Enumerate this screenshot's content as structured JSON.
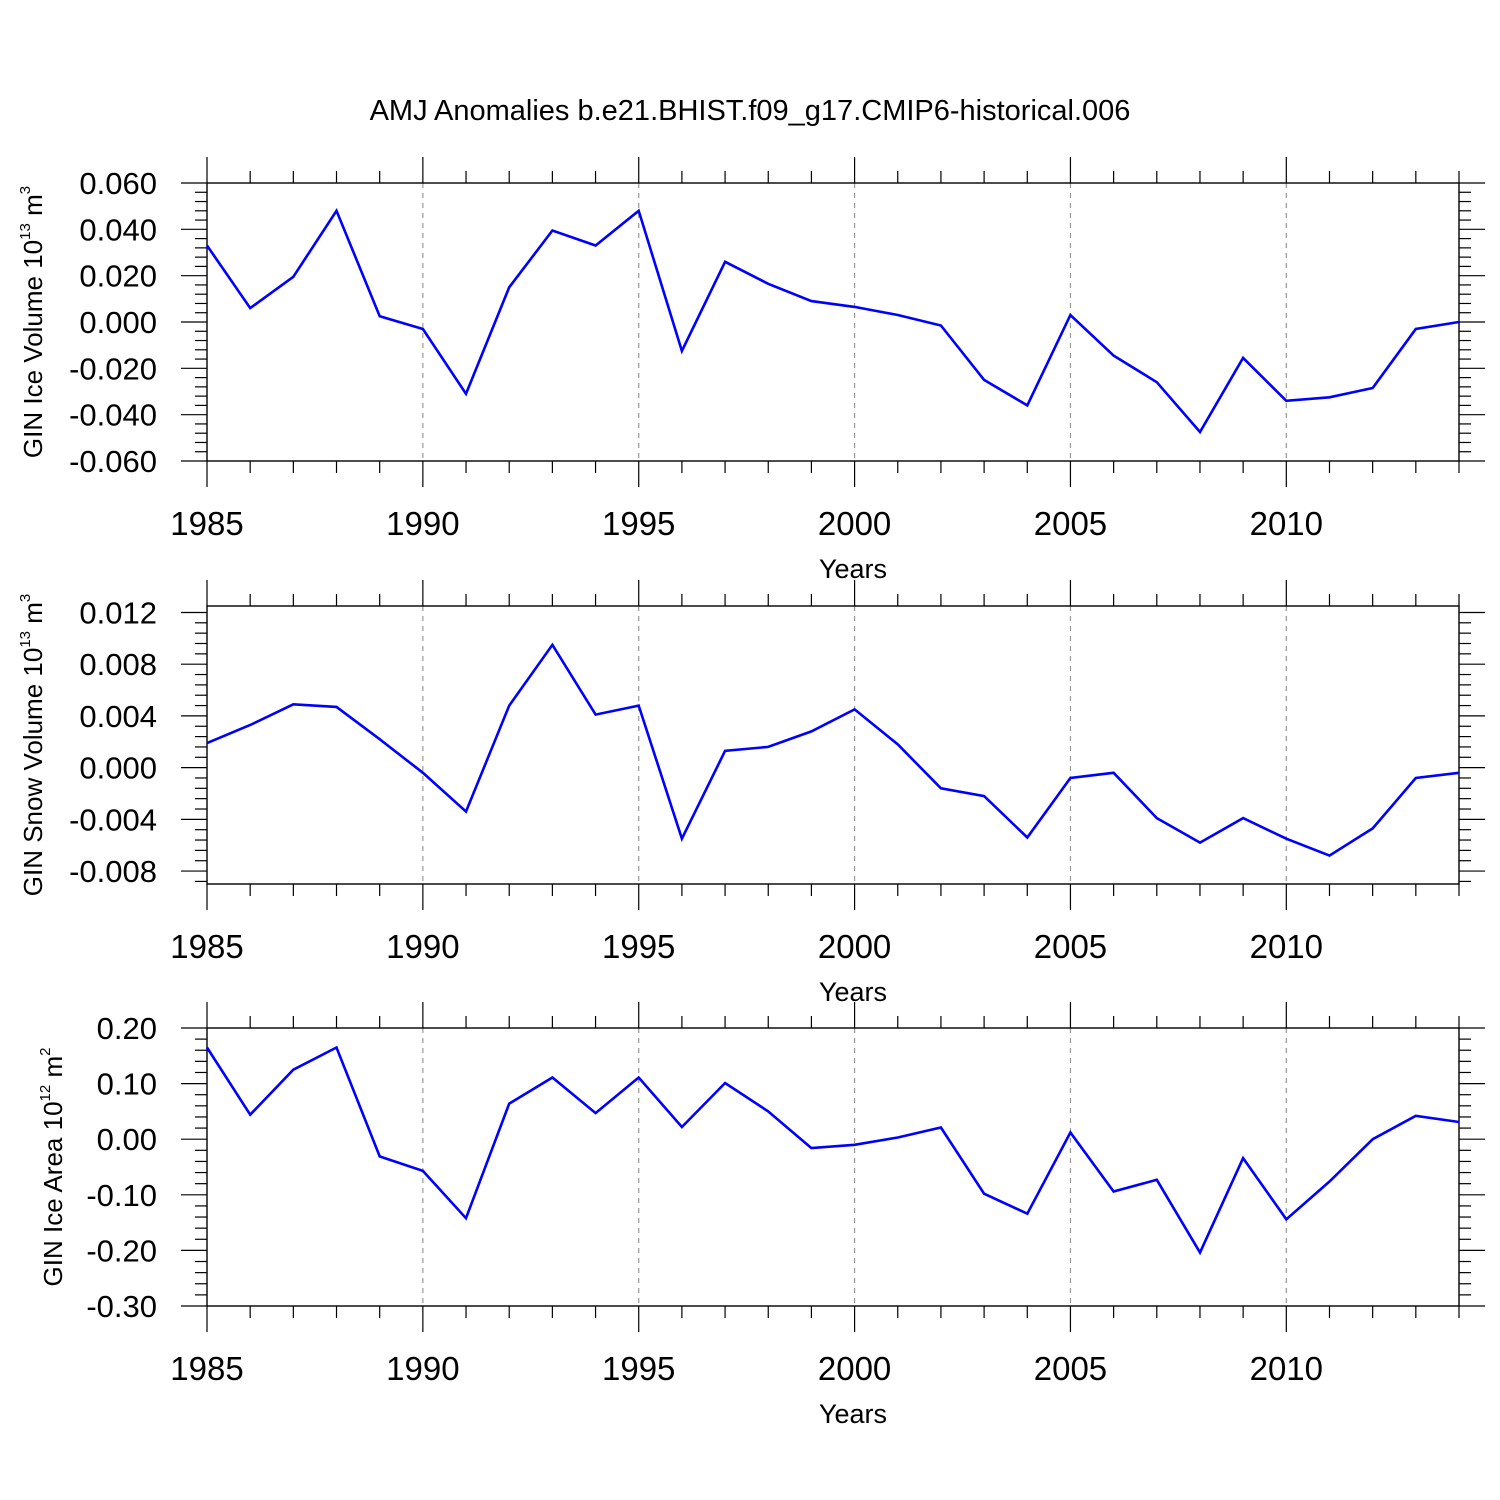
{
  "figure_title": "AMJ Anomalies b.e21.BHIST.f09_g17.CMIP6-historical.006",
  "colors": {
    "line": "#0000ff",
    "axis": "#000000",
    "grid": "#999999"
  },
  "chart_data": [
    {
      "type": "line",
      "ylabel": {
        "text": "GIN Ice Volume 10",
        "exp": "13",
        "unit": " m",
        "unit_exp": "3"
      },
      "xlabel": "Years",
      "xlim": [
        1985,
        2014
      ],
      "ylim": [
        -0.06,
        0.06
      ],
      "x_ticks": [
        "1985",
        "1990",
        "1995",
        "2000",
        "2005",
        "2010"
      ],
      "y_ticks": [
        "-0.060",
        "-0.040",
        "-0.020",
        "0.000",
        "0.020",
        "0.040",
        "0.060"
      ],
      "x": [
        1985,
        1986,
        1987,
        1988,
        1989,
        1990,
        1991,
        1992,
        1993,
        1994,
        1995,
        1996,
        1997,
        1998,
        1999,
        2000,
        2001,
        2002,
        2003,
        2004,
        2005,
        2006,
        2007,
        2008,
        2009,
        2010,
        2011,
        2012,
        2013,
        2014
      ],
      "series": [
        {
          "values": [
            0.033,
            0.006,
            0.0195,
            0.048,
            0.0025,
            -0.003,
            -0.031,
            0.015,
            0.0395,
            0.033,
            0.048,
            -0.0125,
            0.026,
            0.0165,
            0.009,
            0.0065,
            0.003,
            -0.0015,
            -0.025,
            -0.036,
            0.003,
            -0.0145,
            -0.026,
            -0.0475,
            -0.0155,
            -0.034,
            -0.0325,
            -0.0285,
            -0.003,
            0.0
          ]
        }
      ]
    },
    {
      "type": "line",
      "ylabel": {
        "text": "GIN Snow Volume 10",
        "exp": "13",
        "unit": " m",
        "unit_exp": "3"
      },
      "xlabel": "Years",
      "xlim": [
        1985,
        2014
      ],
      "ylim": [
        -0.009,
        0.0125
      ],
      "x_ticks": [
        "1985",
        "1990",
        "1995",
        "2000",
        "2005",
        "2010"
      ],
      "y_ticks": [
        "-0.008",
        "-0.004",
        "0.000",
        "0.004",
        "0.008",
        "0.012"
      ],
      "x": [
        1985,
        1986,
        1987,
        1988,
        1989,
        1990,
        1991,
        1992,
        1993,
        1994,
        1995,
        1996,
        1997,
        1998,
        1999,
        2000,
        2001,
        2002,
        2003,
        2004,
        2005,
        2006,
        2007,
        2008,
        2009,
        2010,
        2011,
        2012,
        2013,
        2014
      ],
      "series": [
        {
          "values": [
            0.0019,
            0.0033,
            0.0049,
            0.0047,
            0.0022,
            -0.0004,
            -0.0034,
            0.0048,
            0.0095,
            0.0041,
            0.0048,
            -0.0055,
            0.0013,
            0.0016,
            0.0028,
            0.0045,
            0.0018,
            -0.0016,
            -0.0022,
            -0.0054,
            -0.0008,
            -0.0004,
            -0.0039,
            -0.0058,
            -0.0039,
            -0.0055,
            -0.0068,
            -0.0047,
            -0.0008,
            -0.0004
          ]
        }
      ]
    },
    {
      "type": "line",
      "ylabel": {
        "text": "GIN Ice Area 10",
        "exp": "12",
        "unit": " m",
        "unit_exp": "2"
      },
      "xlabel": "Years",
      "xlim": [
        1985,
        2014
      ],
      "ylim": [
        -0.3,
        0.2
      ],
      "x_ticks": [
        "1985",
        "1990",
        "1995",
        "2000",
        "2005",
        "2010"
      ],
      "y_ticks": [
        "-0.30",
        "-0.20",
        "-0.10",
        "0.00",
        "0.10",
        "0.20"
      ],
      "x": [
        1985,
        1986,
        1987,
        1988,
        1989,
        1990,
        1991,
        1992,
        1993,
        1994,
        1995,
        1996,
        1997,
        1998,
        1999,
        2000,
        2001,
        2002,
        2003,
        2004,
        2005,
        2006,
        2007,
        2008,
        2009,
        2010,
        2011,
        2012,
        2013,
        2014
      ],
      "series": [
        {
          "values": [
            0.165,
            0.044,
            0.125,
            0.165,
            -0.031,
            -0.057,
            -0.142,
            0.064,
            0.111,
            0.047,
            0.111,
            0.022,
            0.101,
            0.05,
            -0.016,
            -0.01,
            0.003,
            0.021,
            -0.098,
            -0.134,
            0.012,
            -0.094,
            -0.073,
            -0.204,
            -0.034,
            -0.144,
            -0.076,
            0.0,
            0.042,
            0.031
          ]
        }
      ]
    }
  ]
}
